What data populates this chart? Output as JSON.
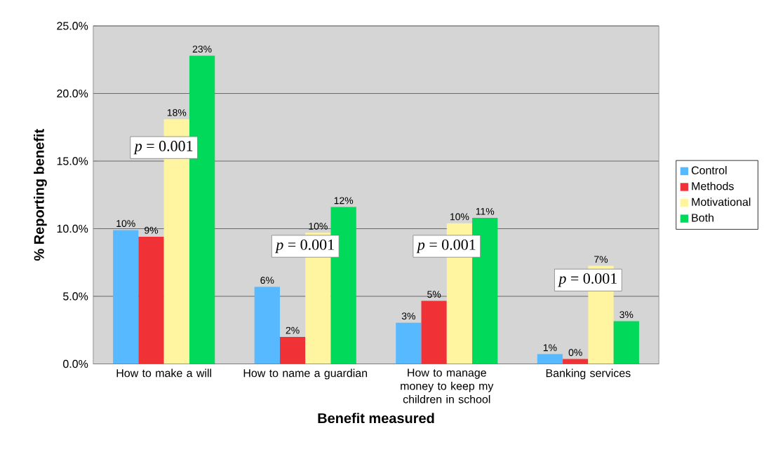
{
  "chart_data": {
    "type": "bar",
    "xlabel": "Benefit measured",
    "ylabel": "% Reporting benefit",
    "categories": [
      "How to make a will",
      "How to name a guardian",
      "How to manage money to keep my children in school",
      "Banking services"
    ],
    "series": [
      {
        "name": "Control",
        "color": "#57b9ff",
        "values": [
          9.9,
          5.7,
          3.05,
          0.72
        ],
        "value_labels": [
          "10%",
          "6%",
          "3%",
          "1%"
        ]
      },
      {
        "name": "Methods",
        "color": "#f03237",
        "values": [
          9.4,
          2.0,
          4.66,
          0.36
        ],
        "value_labels": [
          "9%",
          "2%",
          "5%",
          "0%"
        ]
      },
      {
        "name": "Motivational",
        "color": "#fff5a0",
        "values": [
          18.1,
          9.7,
          10.4,
          7.25
        ],
        "value_labels": [
          "18%",
          "10%",
          "10%",
          "7%"
        ]
      },
      {
        "name": "Both",
        "color": "#00d95a",
        "values": [
          22.8,
          11.6,
          10.8,
          3.16
        ],
        "value_labels": [
          "23%",
          "12%",
          "11%",
          "3%"
        ]
      }
    ],
    "ylim": [
      0,
      25
    ],
    "yticks": [
      {
        "value": 0,
        "label": "0.0%"
      },
      {
        "value": 5,
        "label": "5.0%"
      },
      {
        "value": 10,
        "label": "10.0%"
      },
      {
        "value": 15,
        "label": "15.0%"
      },
      {
        "value": 20,
        "label": "20.0%"
      },
      {
        "value": 25,
        "label": "25.0%"
      }
    ],
    "grid": "y",
    "legend": "right",
    "annotations": [
      {
        "text": "*p* = 0.001",
        "x": "How to make a will",
        "y": 16.0
      },
      {
        "text": "*p* = 0.001",
        "x": "How to name a guardian",
        "y": 8.7
      },
      {
        "text": "*p* = 0.001",
        "x": "How to manage money to keep my children in school",
        "y": 8.7
      },
      {
        "text": "*p* = 0.001",
        "x": "Banking services",
        "y": 6.2
      }
    ]
  }
}
